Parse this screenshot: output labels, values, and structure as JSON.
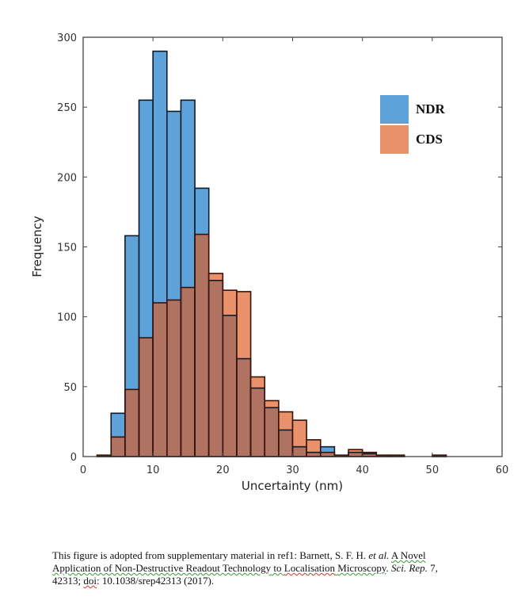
{
  "chart_data": {
    "type": "bar",
    "subtype": "overlaid-histogram",
    "title": "",
    "xlabel": "Uncertainty (nm)",
    "ylabel": "Frequency",
    "xlim": [
      0,
      60
    ],
    "ylim": [
      0,
      300
    ],
    "xticks": [
      0,
      10,
      20,
      30,
      40,
      50,
      60
    ],
    "yticks": [
      0,
      50,
      100,
      150,
      200,
      250,
      300
    ],
    "bin_width": 2,
    "bin_edges_start": [
      2,
      4,
      6,
      8,
      10,
      12,
      14,
      16,
      18,
      20,
      22,
      24,
      26,
      28,
      30,
      32,
      34,
      36,
      38,
      40,
      42,
      44,
      46,
      48,
      50
    ],
    "grid": false,
    "legend_position": "top-right",
    "series": [
      {
        "name": "NDR",
        "color": "#5DA3D9",
        "values": [
          1,
          31,
          158,
          255,
          290,
          247,
          255,
          192,
          126,
          101,
          70,
          49,
          35,
          19,
          7,
          3,
          7,
          1,
          3,
          2,
          1,
          1,
          0,
          0,
          1
        ]
      },
      {
        "name": "CDS",
        "color": "#E8916B",
        "values": [
          1,
          14,
          48,
          85,
          110,
          112,
          121,
          159,
          131,
          119,
          118,
          57,
          40,
          32,
          26,
          12,
          3,
          1,
          5,
          3,
          1,
          1,
          0,
          0,
          1
        ]
      }
    ],
    "overlap_color": "#B07362"
  },
  "caption": {
    "line1_a": "This figure is adopted from supplementary material in ref1: Barnett, S. F. H. ",
    "line1_etal": "et al.",
    "line1_b": " ",
    "line1_link": "A Novel",
    "line2_a": "Application of Non-Destructive Readout Technology",
    "line2_b": " to ",
    "line2_c": "Localisation",
    "line2_d": " ",
    "line2_e": "Microscopy",
    "line2_f": ". ",
    "line2_journal": "Sci. Rep.",
    "line2_vol": " 7,",
    "line3_a": "42313; ",
    "line3_doi": "doi",
    "line3_b": ": 10.1038/srep42313  (2017)."
  }
}
